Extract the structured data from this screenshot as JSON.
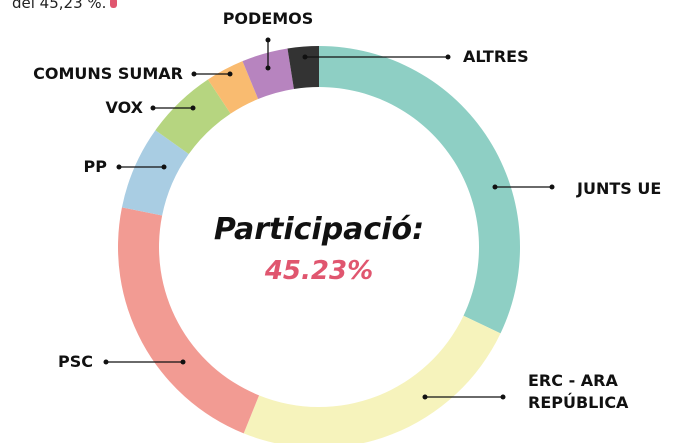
{
  "chart_data": {
    "type": "donut",
    "note": "del 45,23 %.",
    "center_title": "Participació:",
    "center_value": "45.23%",
    "categories": [
      "JUNTS UE",
      "ERC - ARA REPÚBLICA",
      "PSC",
      "PP",
      "VOX",
      "COMUNS SUMAR",
      "PODEMOS",
      "ALTRES"
    ],
    "values": [
      32,
      24,
      22,
      6.7,
      5.8,
      3.1,
      3.7,
      2.5
    ],
    "colors": [
      "#8ecfc4",
      "#f6f3bc",
      "#f29b93",
      "#a9cde3",
      "#b6d580",
      "#f9bb70",
      "#b784bf",
      "#333333"
    ]
  }
}
